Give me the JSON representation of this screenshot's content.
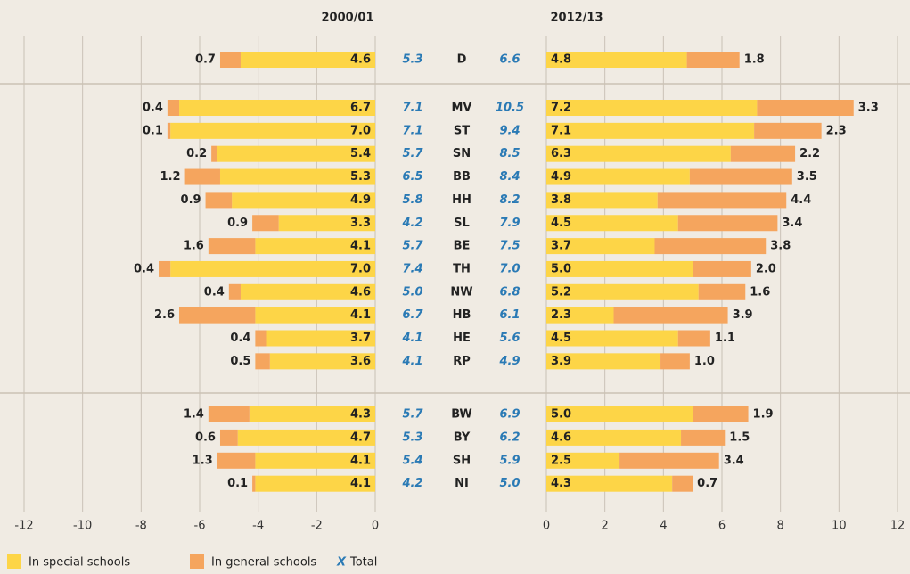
{
  "chart_data": {
    "type": "bar",
    "orientation": "horizontal",
    "categories": [
      "D",
      "MV",
      "ST",
      "SN",
      "BB",
      "HH",
      "SL",
      "BE",
      "TH",
      "NW",
      "HB",
      "HE",
      "RP",
      "BW",
      "BY",
      "SH",
      "NI"
    ],
    "series": [
      {
        "name": "In special schools",
        "color": "#fdd547"
      },
      {
        "name": "In general schools",
        "color": "#f5a55e"
      }
    ],
    "total": {
      "name": "Total",
      "marker": "X",
      "color": "#2a7ab5"
    },
    "grid": true,
    "panels": [
      {
        "title": "2000/01",
        "xlim": [
          -12,
          0
        ],
        "xticks": [
          -12,
          -10,
          -8,
          -6,
          -4,
          -2,
          0
        ],
        "series": [
          {
            "values": [
              4.6,
              6.7,
              7.0,
              5.4,
              5.3,
              4.9,
              3.3,
              4.1,
              7.0,
              4.6,
              4.1,
              3.7,
              3.6,
              4.3,
              4.7,
              4.1,
              4.1
            ],
            "value_labels": [
              "4.6",
              "6.7",
              "7.0",
              "5.4",
              "5.3",
              "4.9",
              "3.3",
              "4.1",
              "7.0",
              "4.6",
              "4.1",
              "3.7",
              "3.6",
              "4.3",
              "4.7",
              "4.1",
              "4.1"
            ]
          },
          {
            "values": [
              0.7,
              0.4,
              0.1,
              0.2,
              1.2,
              0.9,
              0.9,
              1.6,
              0.4,
              0.4,
              2.6,
              0.4,
              0.5,
              1.4,
              0.6,
              1.3,
              0.1
            ],
            "value_labels": [
              "0.7",
              "0.4",
              "0.1",
              "0.2",
              "1.2",
              "0.9",
              "0.9",
              "1.6",
              "0.4",
              "0.4",
              "2.6",
              "0.4",
              "0.5",
              "1.4",
              "0.6",
              "1.3",
              "0.1"
            ]
          }
        ],
        "totals": [
          5.3,
          7.1,
          7.1,
          5.7,
          6.5,
          5.8,
          4.2,
          5.7,
          7.4,
          5.0,
          6.7,
          4.1,
          4.1,
          5.7,
          5.3,
          5.4,
          4.2
        ],
        "total_labels": [
          "5.3",
          "7.1",
          "7.1",
          "5.7",
          "6.5",
          "5.8",
          "4.2",
          "5.7",
          "7.4",
          "5.0",
          "6.7",
          "4.1",
          "4.1",
          "5.7",
          "5.3",
          "5.4",
          "4.2"
        ]
      },
      {
        "title": "2012/13",
        "xlim": [
          0,
          12
        ],
        "xticks": [
          0,
          2,
          4,
          6,
          8,
          10,
          12
        ],
        "series": [
          {
            "values": [
              4.8,
              7.2,
              7.1,
              6.3,
              4.9,
              3.8,
              4.5,
              3.7,
              5.0,
              5.2,
              2.3,
              4.5,
              3.9,
              5.0,
              4.6,
              2.5,
              4.3
            ],
            "value_labels": [
              "4.8",
              "7.2",
              "7.1",
              "6.3",
              "4.9",
              "3.8",
              "4.5",
              "3.7",
              "5.0",
              "5.2",
              "2.3",
              "4.5",
              "3.9",
              "5.0",
              "4.6",
              "2.5",
              "4.3"
            ]
          },
          {
            "values": [
              1.8,
              3.3,
              2.3,
              2.2,
              3.5,
              4.4,
              3.4,
              3.8,
              2.0,
              1.6,
              3.9,
              1.1,
              1.0,
              1.9,
              1.5,
              3.4,
              0.7
            ],
            "value_labels": [
              "1.8",
              "3.3",
              "2.3",
              "2.2",
              "3.5",
              "4.4",
              "3.4",
              "3.8",
              "2.0",
              "1.6",
              "3.9",
              "1.1",
              "1.0",
              "1.9",
              "1.5",
              "3.4",
              "0.7"
            ]
          }
        ],
        "totals": [
          6.6,
          10.5,
          9.4,
          8.5,
          8.4,
          8.2,
          7.9,
          7.5,
          7.0,
          6.8,
          6.1,
          5.6,
          4.9,
          6.9,
          6.2,
          5.9,
          5.0
        ],
        "total_labels": [
          "6.6",
          "10.5",
          "9.4",
          "8.5",
          "8.4",
          "8.2",
          "7.9",
          "7.5",
          "7.0",
          "6.8",
          "6.1",
          "5.6",
          "4.9",
          "6.9",
          "6.2",
          "5.9",
          "5.0"
        ]
      }
    ]
  }
}
